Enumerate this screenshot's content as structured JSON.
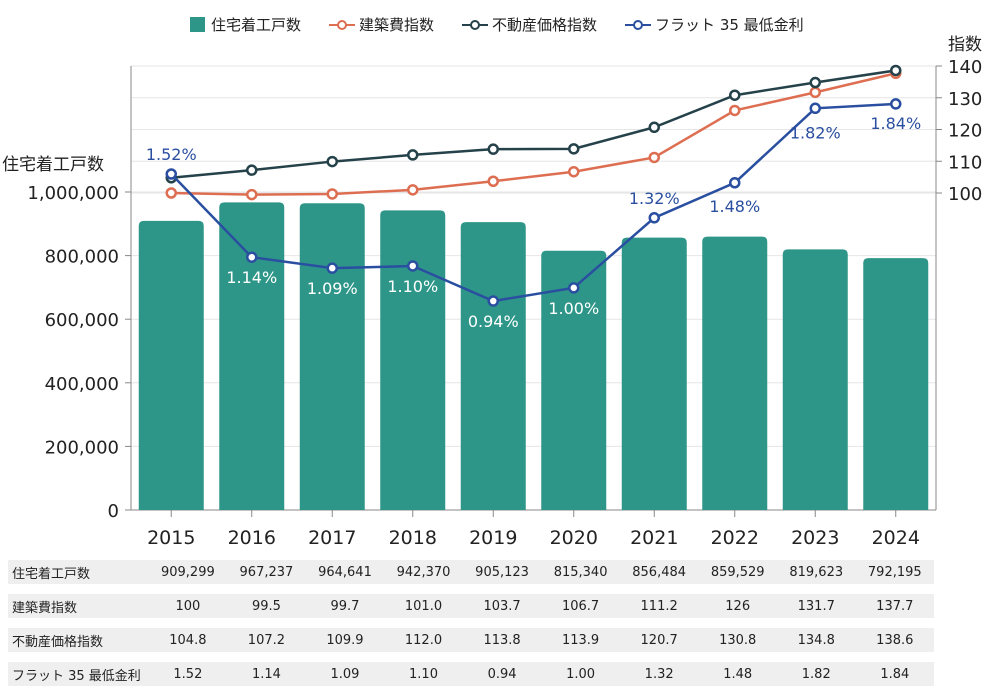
{
  "chart_data": {
    "type": "bar",
    "categories": [
      "2015",
      "2016",
      "2017",
      "2018",
      "2019",
      "2020",
      "2021",
      "2022",
      "2023",
      "2024"
    ],
    "series": [
      {
        "name": "住宅着工戸数",
        "type": "bar",
        "axis": "left",
        "color": "#2e9688",
        "values": [
          909299,
          967237,
          964641,
          942370,
          905123,
          815340,
          856484,
          859529,
          819623,
          792195
        ]
      },
      {
        "name": "建築費指数",
        "type": "line",
        "axis": "right",
        "color": "#dd6e51",
        "values": [
          100,
          99.5,
          99.7,
          101.0,
          103.7,
          106.7,
          111.2,
          126,
          131.7,
          137.7
        ]
      },
      {
        "name": "不動産価格指数",
        "type": "line",
        "axis": "right",
        "color": "#25424a",
        "values": [
          104.8,
          107.2,
          109.9,
          112.0,
          113.8,
          113.9,
          120.7,
          130.8,
          134.8,
          138.6
        ]
      },
      {
        "name": "フラット 35 最低金利",
        "type": "line",
        "axis": "hidden",
        "color": "#2a4fa0",
        "unit": "%",
        "values": [
          1.52,
          1.14,
          1.09,
          1.1,
          0.94,
          1.0,
          1.32,
          1.48,
          1.82,
          1.84
        ]
      }
    ],
    "data_labels": [
      "1.52%",
      "1.14%",
      "1.09%",
      "1.10%",
      "0.94%",
      "1.00%",
      "1.32%",
      "1.48%",
      "1.82%",
      "1.84%"
    ],
    "left_axis": {
      "title": "住宅着工戸数",
      "ticks": [
        "0",
        "200,000",
        "400,000",
        "600,000",
        "800,000",
        "1,000,000"
      ],
      "tick_values": [
        0,
        200000,
        400000,
        600000,
        800000,
        1000000
      ],
      "range": [
        0,
        1000000
      ]
    },
    "right_axis": {
      "title": "指数",
      "ticks": [
        "100",
        "110",
        "120",
        "130",
        "140"
      ],
      "tick_values": [
        100,
        110,
        120,
        130,
        140
      ],
      "range": [
        100,
        140
      ]
    },
    "legend": {
      "placement": "top",
      "entries": [
        "住宅着工戸数",
        "建築費指数",
        "不動産価格指数",
        "フラット 35 最低金利"
      ]
    },
    "grid": true,
    "title": "",
    "xlabel": "",
    "ylabel": "住宅着工戸数",
    "y2label": "指数"
  },
  "table": {
    "rows": [
      {
        "label": "住宅着工戸数",
        "cells": [
          "909,299",
          "967,237",
          "964,641",
          "942,370",
          "905,123",
          "815,340",
          "856,484",
          "859,529",
          "819,623",
          "792,195"
        ]
      },
      {
        "label": "建築費指数",
        "cells": [
          "100",
          "99.5",
          "99.7",
          "101.0",
          "103.7",
          "106.7",
          "111.2",
          "126",
          "131.7",
          "137.7"
        ]
      },
      {
        "label": "不動産価格指数",
        "cells": [
          "104.8",
          "107.2",
          "109.9",
          "112.0",
          "113.8",
          "113.9",
          "120.7",
          "130.8",
          "134.8",
          "138.6"
        ]
      },
      {
        "label": "フラット 35 最低金利",
        "cells": [
          "1.52",
          "1.14",
          "1.09",
          "1.10",
          "0.94",
          "1.00",
          "1.32",
          "1.48",
          "1.82",
          "1.84"
        ]
      }
    ]
  }
}
